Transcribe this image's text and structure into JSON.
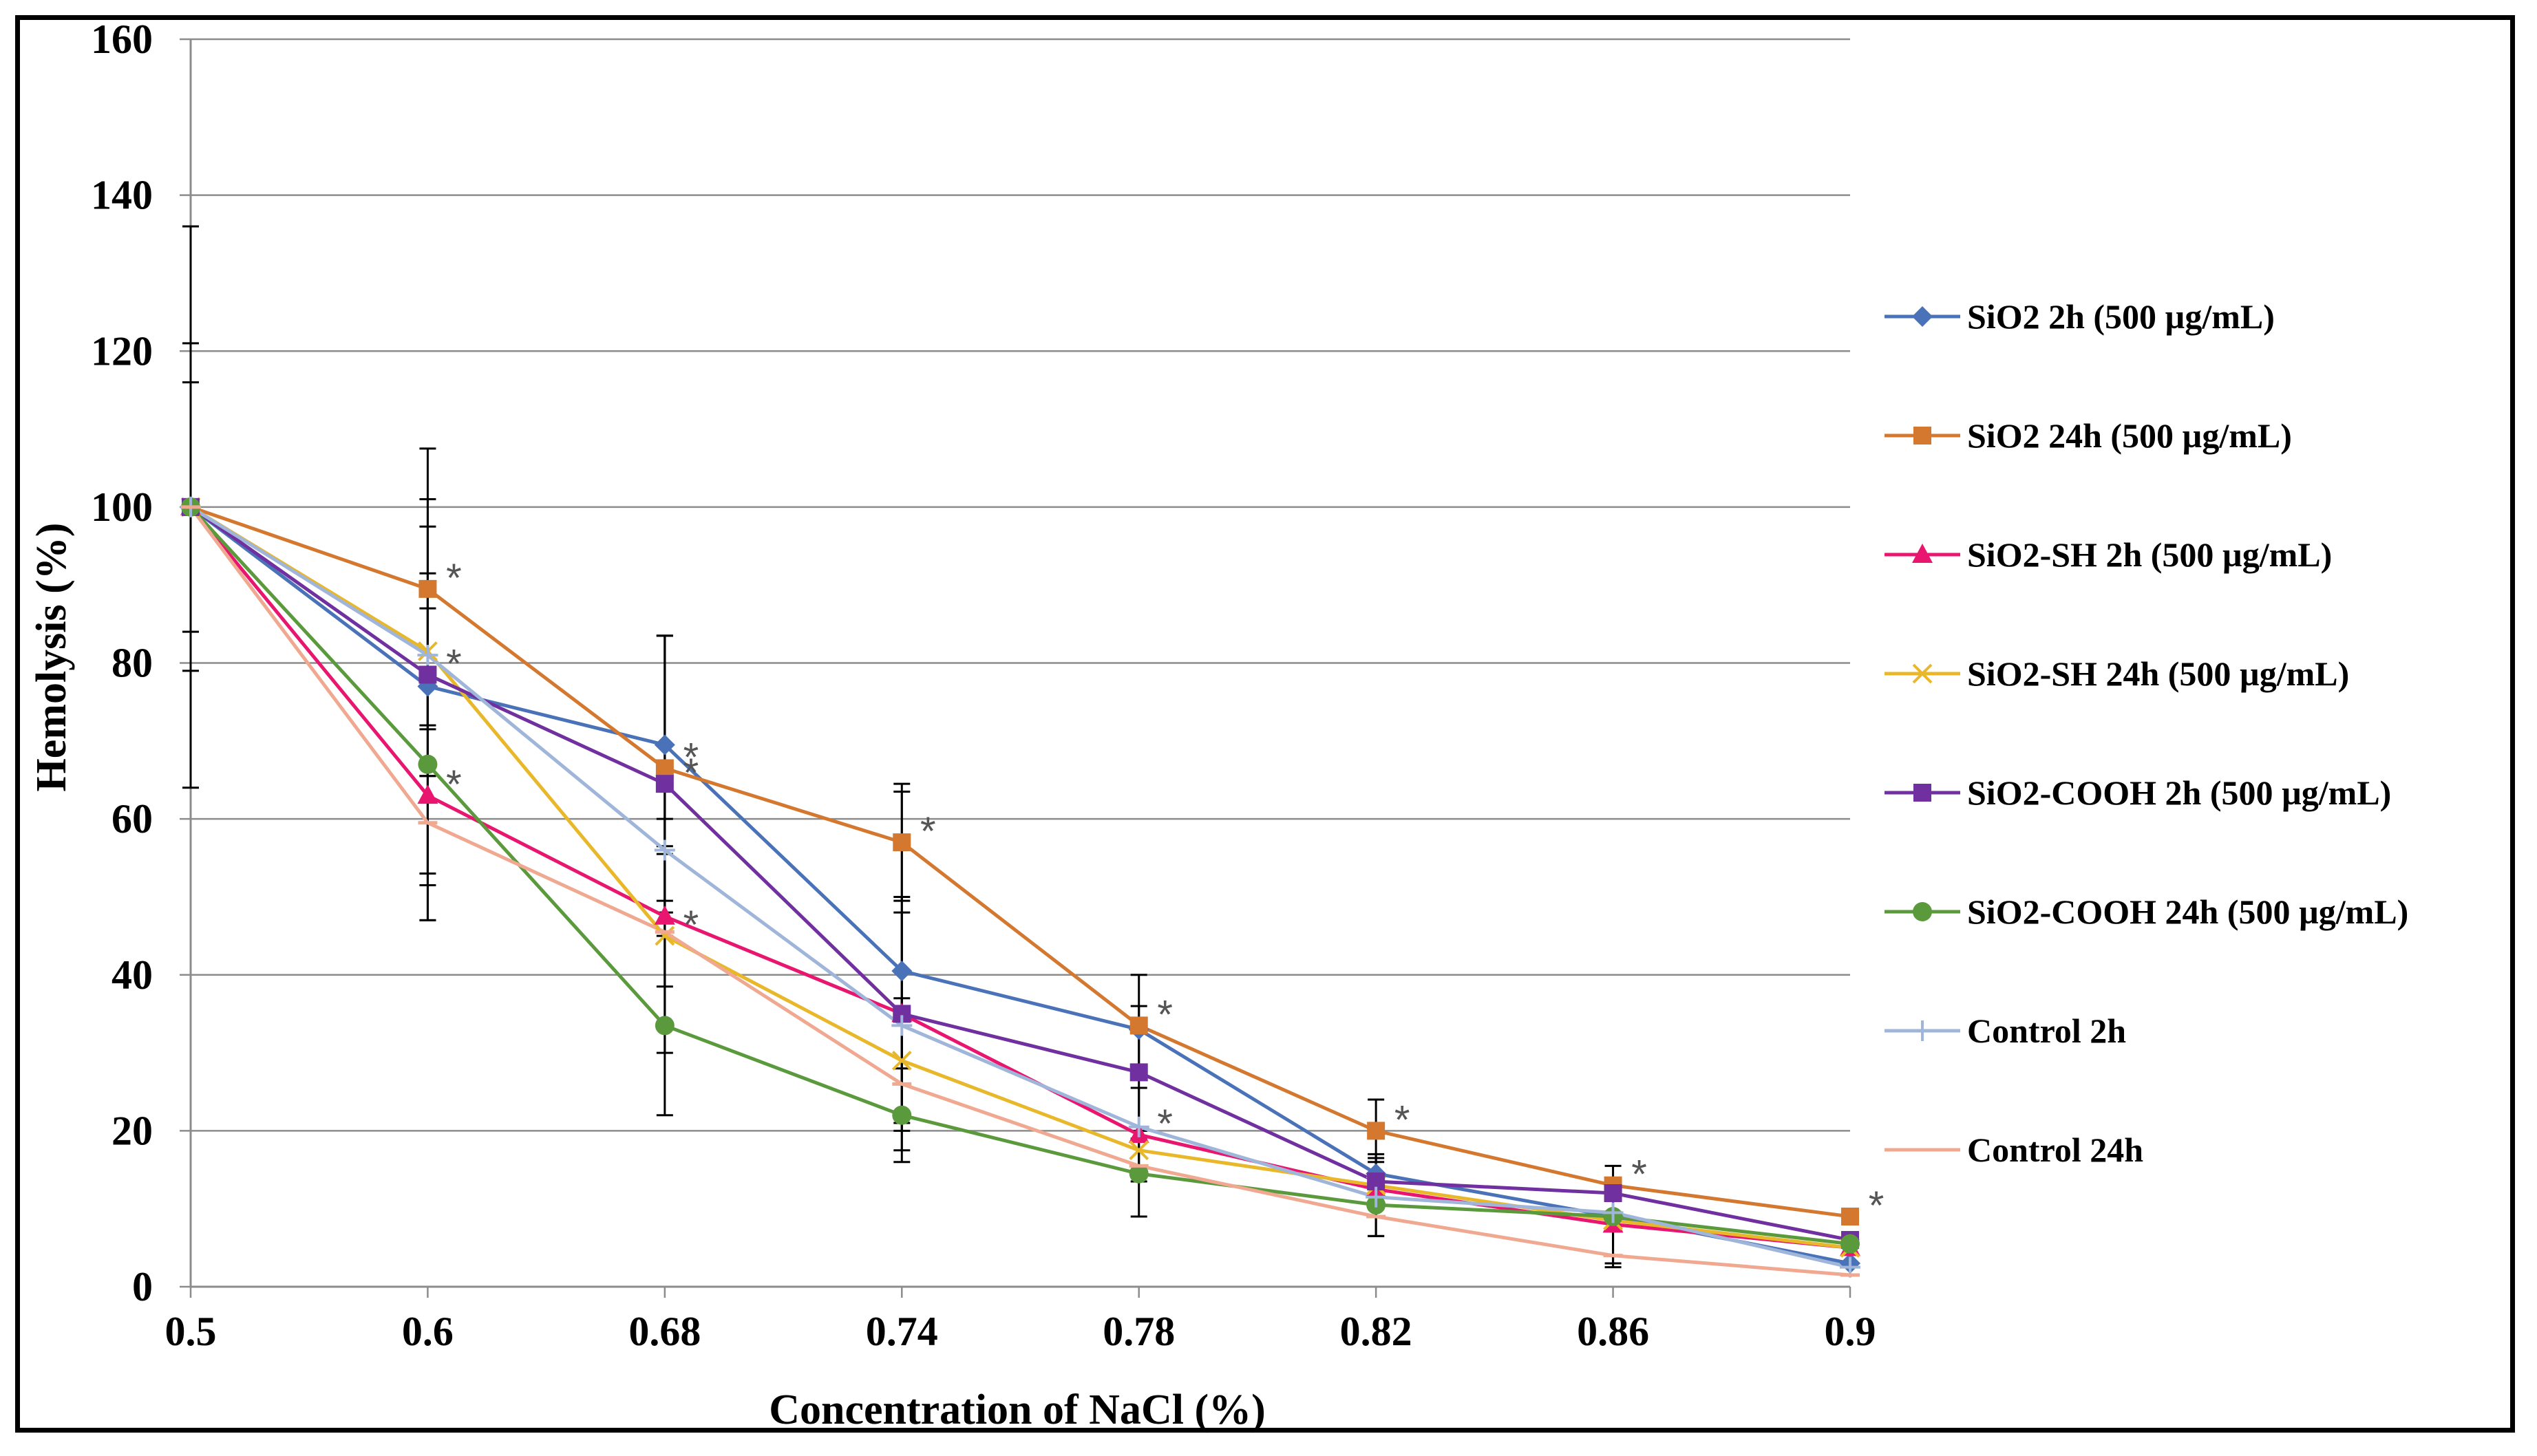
{
  "chart_data": {
    "type": "line",
    "title": "",
    "xlabel": "Concentration of  NaCl (%)",
    "ylabel": "Hemolysis (%)",
    "categories": [
      "0.5",
      "0.6",
      "0.68",
      "0.74",
      "0.78",
      "0.82",
      "0.86",
      "0.9"
    ],
    "ylim": [
      0,
      160
    ],
    "yticks": [
      0,
      20,
      40,
      60,
      80,
      100,
      120,
      140,
      160
    ],
    "grid": true,
    "legend_position": "right",
    "series": [
      {
        "name": "SiO2 2h (500 µg/mL)",
        "color": "#4A72B8",
        "marker": "diamond",
        "values": [
          100,
          77,
          69.5,
          40.5,
          33,
          14.5,
          9,
          3
        ],
        "errors": [
          null,
          24,
          14,
          23,
          null,
          null,
          null,
          null
        ]
      },
      {
        "name": "SiO2 24h (500 µg/mL)",
        "color": "#D4782F",
        "marker": "square",
        "values": [
          100,
          89.5,
          66.5,
          57,
          33.5,
          20,
          13,
          9
        ],
        "errors": [
          36,
          18,
          17,
          7.5,
          6.5,
          4,
          null,
          null
        ]
      },
      {
        "name": "SiO2-SH 2h (500 µg/mL)",
        "color": "#E8166F",
        "marker": "triangle",
        "values": [
          100,
          63,
          47.5,
          35,
          19.5,
          12.5,
          8,
          5
        ],
        "errors": [
          null,
          16,
          9,
          13,
          6,
          null,
          5,
          null
        ]
      },
      {
        "name": "SiO2-SH 24h (500 µg/mL)",
        "color": "#E8B82A",
        "marker": "x",
        "values": [
          100,
          81.5,
          45,
          29,
          17.5,
          13,
          8.5,
          5
        ],
        "errors": [
          21,
          16,
          15,
          8,
          null,
          null,
          null,
          null
        ]
      },
      {
        "name": "SiO2-COOH 2h (500 µg/mL)",
        "color": "#7030A0",
        "marker": "square",
        "values": [
          100,
          78.5,
          64.5,
          35,
          27.5,
          13.5,
          12,
          6
        ],
        "errors": [
          null,
          13,
          19,
          15,
          8.5,
          3.5,
          null,
          null
        ]
      },
      {
        "name": "SiO2-COOH 24h (500 µg/mL)",
        "color": "#5A9A3C",
        "marker": "circle",
        "values": [
          100,
          67,
          33.5,
          22,
          14.5,
          10.5,
          9,
          5.5
        ],
        "errors": [
          null,
          20,
          11.5,
          6,
          5.5,
          4,
          6.5,
          null
        ]
      },
      {
        "name": "Control 2h",
        "color": "#9FB5DA",
        "marker": "plus",
        "values": [
          100,
          81,
          56,
          33.5,
          20.5,
          11.5,
          9.5,
          2.5
        ],
        "errors": [
          16,
          9,
          8,
          null,
          null,
          5,
          null,
          null
        ]
      },
      {
        "name": "Control 24h",
        "color": "#F0A890",
        "marker": "dash",
        "values": [
          100,
          59.5,
          45.5,
          26,
          15.5,
          9,
          4,
          1.5
        ],
        "errors": [
          null,
          8,
          null,
          null,
          null,
          null,
          null,
          null
        ]
      }
    ],
    "annotations": [
      {
        "text": "*",
        "series": 1,
        "index": 1
      },
      {
        "text": "*",
        "series": 4,
        "index": 1
      },
      {
        "text": "*",
        "series": 2,
        "index": 1
      },
      {
        "text": "*",
        "series": 1,
        "index": 2
      },
      {
        "text": "*",
        "series": 4,
        "index": 2
      },
      {
        "text": "*",
        "series": 3,
        "index": 2
      },
      {
        "text": "*",
        "series": 1,
        "index": 3
      },
      {
        "text": "*",
        "series": 1,
        "index": 4
      },
      {
        "text": "*",
        "series": 2,
        "index": 4
      },
      {
        "text": "*",
        "series": 1,
        "index": 5
      },
      {
        "text": "*",
        "series": 1,
        "index": 6
      },
      {
        "text": "*",
        "series": 1,
        "index": 7
      }
    ]
  }
}
